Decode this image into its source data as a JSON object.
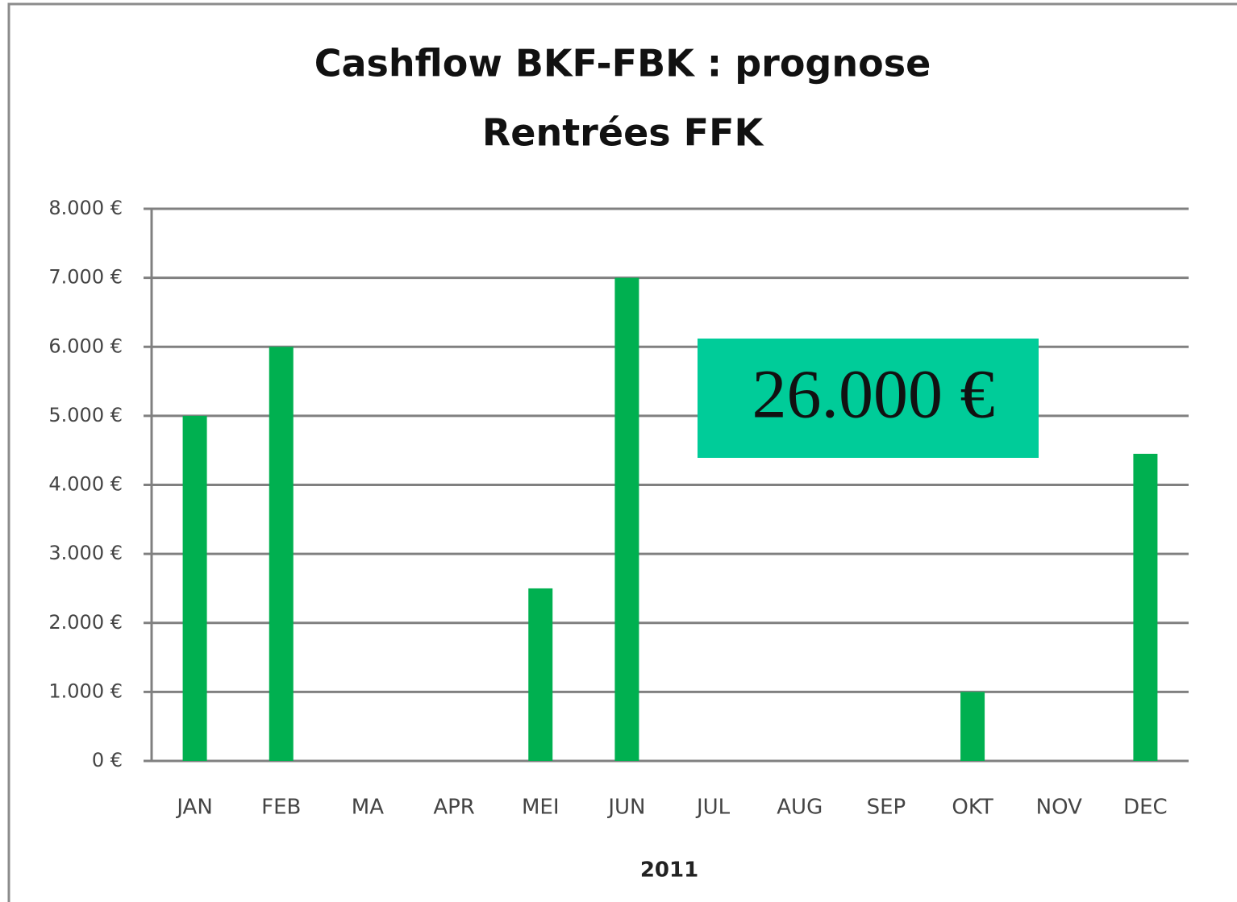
{
  "chart_data": {
    "type": "bar",
    "title": "Cashflow BKF-FBK : prognose",
    "subtitle": "Rentrées FFK",
    "x_label": "2011",
    "annotation": "26.000 €",
    "categories": [
      "JAN",
      "FEB",
      "MA",
      "APR",
      "MEI",
      "JUN",
      "JUL",
      "AUG",
      "SEP",
      "OKT",
      "NOV",
      "DEC"
    ],
    "values": [
      5000,
      6000,
      0,
      0,
      2500,
      7000,
      0,
      0,
      0,
      1000,
      0,
      4450
    ],
    "color": "#00b050",
    "ylim": [
      0,
      8000
    ],
    "yticks": [
      {
        "value": 0,
        "label": "0 €"
      },
      {
        "value": 1000,
        "label": "1.000 €"
      },
      {
        "value": 2000,
        "label": "2.000 €"
      },
      {
        "value": 3000,
        "label": "3.000 €"
      },
      {
        "value": 4000,
        "label": "4.000 €"
      },
      {
        "value": 5000,
        "label": "5.000 €"
      },
      {
        "value": 6000,
        "label": "6.000 €"
      },
      {
        "value": 7000,
        "label": "7.000 €"
      },
      {
        "value": 8000,
        "label": "8.000 €"
      }
    ],
    "grid": true
  }
}
